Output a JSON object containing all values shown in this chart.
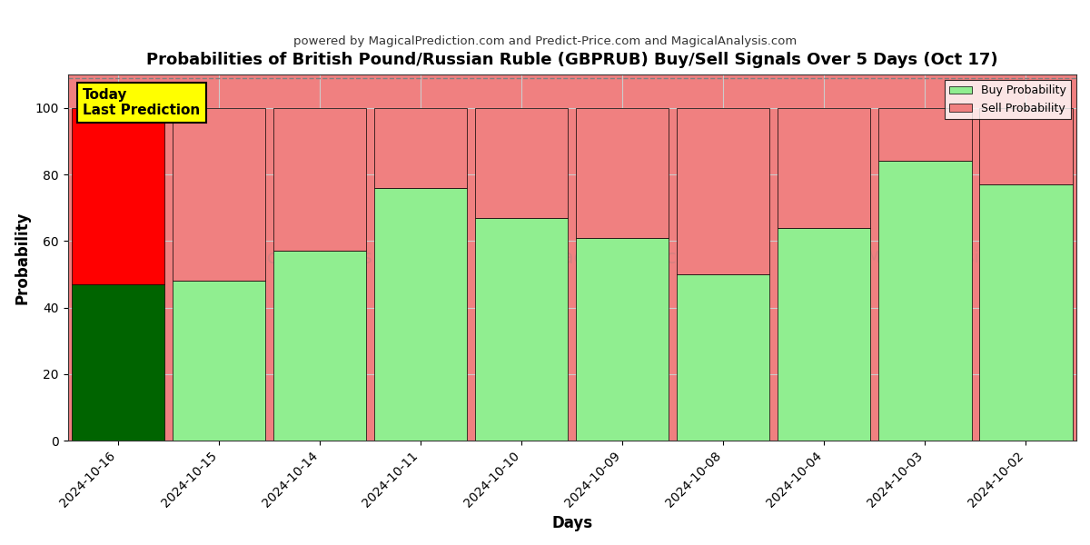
{
  "title": "Probabilities of British Pound/Russian Ruble (GBPRUB) Buy/Sell Signals Over 5 Days (Oct 17)",
  "subtitle": "powered by MagicalPrediction.com and Predict-Price.com and MagicalAnalysis.com",
  "xlabel": "Days",
  "ylabel": "Probability",
  "categories": [
    "2024-10-16",
    "2024-10-15",
    "2024-10-14",
    "2024-10-11",
    "2024-10-10",
    "2024-10-09",
    "2024-10-08",
    "2024-10-04",
    "2024-10-03",
    "2024-10-02"
  ],
  "buy_values": [
    47,
    48,
    57,
    76,
    67,
    61,
    50,
    64,
    84,
    77
  ],
  "sell_values": [
    53,
    52,
    43,
    24,
    33,
    39,
    50,
    36,
    16,
    23
  ],
  "buy_colors": [
    "#006400",
    "#90EE90",
    "#90EE90",
    "#90EE90",
    "#90EE90",
    "#90EE90",
    "#90EE90",
    "#90EE90",
    "#90EE90",
    "#90EE90"
  ],
  "sell_colors": [
    "#FF0000",
    "#F08080",
    "#F08080",
    "#F08080",
    "#F08080",
    "#F08080",
    "#F08080",
    "#F08080",
    "#F08080",
    "#F08080"
  ],
  "today_label_text": "Today\nLast Prediction",
  "today_label_bg": "#FFFF00",
  "legend_buy_color": "#90EE90",
  "legend_sell_color": "#F08080",
  "ylim": [
    0,
    110
  ],
  "yticks": [
    0,
    20,
    40,
    60,
    80,
    100
  ],
  "dashed_line_y": 109,
  "background_color": "#ffffff",
  "plot_bg_color": "#F08080",
  "grid_color": "#cccccc",
  "bar_edge_color": "#000000",
  "bar_width": 0.92
}
